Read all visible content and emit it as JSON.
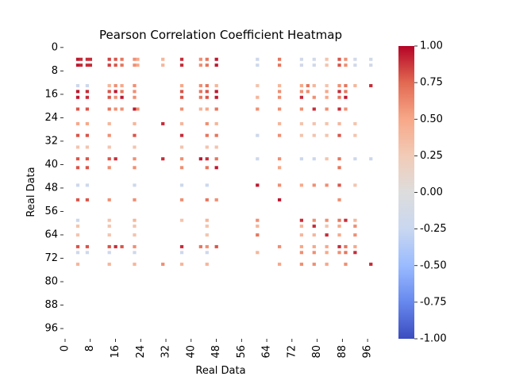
{
  "chart_data": {
    "type": "heatmap",
    "title": "Pearson Correlation Coefficient Heatmap",
    "xlabel": "Real Data",
    "ylabel": "Real Data",
    "n": 100,
    "x_ticks": [
      "0",
      "8",
      "16",
      "24",
      "32",
      "40",
      "48",
      "56",
      "64",
      "72",
      "80",
      "88",
      "96"
    ],
    "y_ticks": [
      "0",
      "8",
      "16",
      "24",
      "32",
      "40",
      "48",
      "56",
      "64",
      "72",
      "80",
      "88",
      "96"
    ],
    "colorbar": {
      "min": -1.0,
      "max": 1.0,
      "ticks": [
        "-1.00",
        "-0.75",
        "-0.50",
        "-0.25",
        "0.00",
        "0.25",
        "0.50",
        "0.75",
        "1.00"
      ],
      "colormap": "coolwarm",
      "colors": [
        "#3b4cc0",
        "#6788ee",
        "#9abbff",
        "#c9d7f0",
        "#dddddd",
        "#f2cbb7",
        "#f7a889",
        "#e26952",
        "#b40426"
      ]
    },
    "cells_note": "Sparse correlation matrix; dominant values listed below (row, col, value). Unlisted cells are blank (NaN).",
    "cells": [
      [
        4,
        4,
        0.95
      ],
      [
        4,
        5,
        0.9
      ],
      [
        4,
        7,
        0.9
      ],
      [
        4,
        8,
        0.9
      ],
      [
        4,
        14,
        0.85
      ],
      [
        4,
        16,
        0.8
      ],
      [
        4,
        18,
        0.7
      ],
      [
        4,
        22,
        0.6
      ],
      [
        4,
        23,
        0.5
      ],
      [
        4,
        31,
        0.4
      ],
      [
        4,
        37,
        0.9
      ],
      [
        4,
        43,
        0.6
      ],
      [
        4,
        45,
        0.7
      ],
      [
        4,
        48,
        0.95
      ],
      [
        4,
        61,
        -0.2
      ],
      [
        4,
        68,
        0.7
      ],
      [
        4,
        75,
        -0.15
      ],
      [
        4,
        79,
        -0.15
      ],
      [
        4,
        83,
        0.3
      ],
      [
        4,
        87,
        0.8
      ],
      [
        4,
        89,
        0.6
      ],
      [
        4,
        92,
        -0.15
      ],
      [
        4,
        97,
        -0.15
      ],
      [
        6,
        4,
        0.95
      ],
      [
        6,
        5,
        0.9
      ],
      [
        6,
        7,
        0.9
      ],
      [
        6,
        8,
        0.9
      ],
      [
        6,
        14,
        0.85
      ],
      [
        6,
        16,
        0.8
      ],
      [
        6,
        18,
        0.7
      ],
      [
        6,
        22,
        0.6
      ],
      [
        6,
        23,
        0.5
      ],
      [
        6,
        31,
        0.4
      ],
      [
        6,
        37,
        0.9
      ],
      [
        6,
        43,
        0.6
      ],
      [
        6,
        45,
        0.7
      ],
      [
        6,
        48,
        0.95
      ],
      [
        6,
        61,
        -0.2
      ],
      [
        6,
        68,
        0.7
      ],
      [
        6,
        75,
        -0.15
      ],
      [
        6,
        79,
        -0.15
      ],
      [
        6,
        83,
        0.3
      ],
      [
        6,
        87,
        0.8
      ],
      [
        6,
        89,
        0.6
      ],
      [
        6,
        92,
        -0.15
      ],
      [
        6,
        97,
        -0.15
      ],
      [
        13,
        4,
        -0.2
      ],
      [
        13,
        7,
        -0.2
      ],
      [
        13,
        14,
        0.4
      ],
      [
        13,
        16,
        0.6
      ],
      [
        13,
        18,
        0.5
      ],
      [
        13,
        22,
        0.6
      ],
      [
        13,
        37,
        0.5
      ],
      [
        13,
        43,
        0.6
      ],
      [
        13,
        45,
        0.7
      ],
      [
        13,
        48,
        0.4
      ],
      [
        13,
        61,
        0.3
      ],
      [
        13,
        68,
        0.4
      ],
      [
        13,
        75,
        0.5
      ],
      [
        13,
        77,
        0.7
      ],
      [
        13,
        79,
        0.4
      ],
      [
        13,
        83,
        0.3
      ],
      [
        13,
        87,
        0.6
      ],
      [
        13,
        89,
        0.7
      ],
      [
        13,
        92,
        0.4
      ],
      [
        13,
        97,
        0.9
      ],
      [
        15,
        4,
        0.95
      ],
      [
        15,
        7,
        0.9
      ],
      [
        15,
        14,
        0.8
      ],
      [
        15,
        16,
        0.95
      ],
      [
        15,
        18,
        0.7
      ],
      [
        15,
        22,
        0.6
      ],
      [
        15,
        37,
        0.8
      ],
      [
        15,
        43,
        0.7
      ],
      [
        15,
        45,
        0.8
      ],
      [
        15,
        48,
        0.95
      ],
      [
        15,
        68,
        0.6
      ],
      [
        15,
        75,
        0.6
      ],
      [
        15,
        77,
        0.6
      ],
      [
        15,
        83,
        0.5
      ],
      [
        15,
        87,
        0.9
      ],
      [
        15,
        89,
        0.7
      ],
      [
        17,
        4,
        0.95
      ],
      [
        17,
        7,
        0.9
      ],
      [
        17,
        14,
        0.8
      ],
      [
        17,
        16,
        0.6
      ],
      [
        17,
        18,
        0.95
      ],
      [
        17,
        22,
        0.6
      ],
      [
        17,
        37,
        0.8
      ],
      [
        17,
        43,
        0.7
      ],
      [
        17,
        45,
        0.8
      ],
      [
        17,
        48,
        0.95
      ],
      [
        17,
        61,
        0.4
      ],
      [
        17,
        68,
        0.6
      ],
      [
        17,
        75,
        0.9
      ],
      [
        17,
        79,
        0.6
      ],
      [
        17,
        83,
        0.5
      ],
      [
        17,
        87,
        0.7
      ],
      [
        17,
        89,
        0.95
      ],
      [
        21,
        4,
        0.8
      ],
      [
        21,
        7,
        0.8
      ],
      [
        21,
        14,
        0.7
      ],
      [
        21,
        16,
        0.6
      ],
      [
        21,
        18,
        0.6
      ],
      [
        21,
        22,
        0.95
      ],
      [
        21,
        23,
        0.6
      ],
      [
        21,
        37,
        0.6
      ],
      [
        21,
        43,
        0.4
      ],
      [
        21,
        45,
        0.5
      ],
      [
        21,
        48,
        0.7
      ],
      [
        21,
        61,
        0.6
      ],
      [
        21,
        68,
        0.6
      ],
      [
        21,
        75,
        0.6
      ],
      [
        21,
        79,
        0.9
      ],
      [
        21,
        83,
        0.6
      ],
      [
        21,
        87,
        0.9
      ],
      [
        21,
        89,
        0.6
      ],
      [
        26,
        4,
        0.5
      ],
      [
        26,
        7,
        0.5
      ],
      [
        26,
        14,
        0.4
      ],
      [
        26,
        22,
        0.4
      ],
      [
        26,
        31,
        0.9
      ],
      [
        26,
        37,
        0.4
      ],
      [
        26,
        45,
        0.6
      ],
      [
        26,
        48,
        0.4
      ],
      [
        26,
        68,
        0.4
      ],
      [
        26,
        75,
        0.3
      ],
      [
        26,
        79,
        0.3
      ],
      [
        26,
        83,
        0.3
      ],
      [
        26,
        87,
        0.4
      ],
      [
        26,
        92,
        0.3
      ],
      [
        30,
        4,
        0.8
      ],
      [
        30,
        7,
        0.8
      ],
      [
        30,
        14,
        0.6
      ],
      [
        30,
        22,
        0.8
      ],
      [
        30,
        37,
        0.9
      ],
      [
        30,
        45,
        0.7
      ],
      [
        30,
        48,
        0.7
      ],
      [
        30,
        61,
        -0.2
      ],
      [
        30,
        68,
        0.6
      ],
      [
        30,
        75,
        0.3
      ],
      [
        30,
        79,
        0.3
      ],
      [
        30,
        83,
        0.3
      ],
      [
        30,
        87,
        0.8
      ],
      [
        30,
        92,
        0.3
      ],
      [
        34,
        4,
        0.3
      ],
      [
        34,
        7,
        0.3
      ],
      [
        34,
        14,
        0.3
      ],
      [
        34,
        22,
        0.3
      ],
      [
        34,
        37,
        0.3
      ],
      [
        34,
        45,
        0.3
      ],
      [
        34,
        48,
        0.3
      ],
      [
        38,
        4,
        0.8
      ],
      [
        38,
        7,
        0.8
      ],
      [
        38,
        14,
        0.8
      ],
      [
        38,
        16,
        0.9
      ],
      [
        38,
        22,
        0.6
      ],
      [
        38,
        31,
        0.9
      ],
      [
        38,
        37,
        0.6
      ],
      [
        38,
        43,
        0.95
      ],
      [
        38,
        45,
        0.9
      ],
      [
        38,
        48,
        0.7
      ],
      [
        38,
        61,
        -0.2
      ],
      [
        38,
        68,
        0.6
      ],
      [
        38,
        75,
        -0.2
      ],
      [
        38,
        79,
        -0.2
      ],
      [
        38,
        83,
        0.3
      ],
      [
        38,
        87,
        0.7
      ],
      [
        38,
        92,
        -0.2
      ],
      [
        38,
        97,
        -0.2
      ],
      [
        41,
        4,
        0.8
      ],
      [
        41,
        7,
        0.8
      ],
      [
        41,
        14,
        0.6
      ],
      [
        41,
        22,
        0.6
      ],
      [
        41,
        37,
        0.6
      ],
      [
        41,
        45,
        0.7
      ],
      [
        41,
        48,
        0.95
      ],
      [
        41,
        68,
        0.5
      ],
      [
        41,
        87,
        0.7
      ],
      [
        47,
        4,
        -0.2
      ],
      [
        47,
        7,
        -0.2
      ],
      [
        47,
        22,
        -0.2
      ],
      [
        47,
        37,
        -0.2
      ],
      [
        47,
        45,
        -0.2
      ],
      [
        47,
        61,
        0.95
      ],
      [
        47,
        68,
        0.6
      ],
      [
        47,
        75,
        0.5
      ],
      [
        47,
        79,
        0.6
      ],
      [
        47,
        83,
        0.6
      ],
      [
        47,
        87,
        0.8
      ],
      [
        47,
        92,
        0.3
      ],
      [
        52,
        4,
        0.8
      ],
      [
        52,
        7,
        0.8
      ],
      [
        52,
        14,
        0.6
      ],
      [
        52,
        22,
        0.6
      ],
      [
        52,
        37,
        0.6
      ],
      [
        52,
        45,
        0.7
      ],
      [
        52,
        48,
        0.6
      ],
      [
        52,
        68,
        0.95
      ],
      [
        52,
        87,
        0.6
      ],
      [
        59,
        4,
        -0.2
      ],
      [
        59,
        14,
        0.3
      ],
      [
        59,
        22,
        0.4
      ],
      [
        59,
        37,
        0.3
      ],
      [
        59,
        45,
        0.4
      ],
      [
        59,
        61,
        0.6
      ],
      [
        59,
        75,
        0.9
      ],
      [
        59,
        79,
        0.6
      ],
      [
        59,
        83,
        0.6
      ],
      [
        59,
        87,
        0.7
      ],
      [
        59,
        89,
        0.9
      ],
      [
        59,
        92,
        0.4
      ],
      [
        61,
        4,
        0.3
      ],
      [
        61,
        14,
        0.3
      ],
      [
        61,
        22,
        0.3
      ],
      [
        61,
        45,
        0.3
      ],
      [
        61,
        61,
        0.4
      ],
      [
        61,
        75,
        0.4
      ],
      [
        61,
        79,
        0.9
      ],
      [
        61,
        83,
        0.3
      ],
      [
        61,
        87,
        0.5
      ],
      [
        61,
        92,
        0.6
      ],
      [
        64,
        4,
        0.3
      ],
      [
        64,
        14,
        0.3
      ],
      [
        64,
        22,
        0.3
      ],
      [
        64,
        45,
        0.3
      ],
      [
        64,
        61,
        0.7
      ],
      [
        64,
        75,
        0.4
      ],
      [
        64,
        79,
        0.4
      ],
      [
        64,
        83,
        0.9
      ],
      [
        64,
        87,
        0.5
      ],
      [
        64,
        92,
        0.6
      ],
      [
        68,
        4,
        0.8
      ],
      [
        68,
        7,
        0.8
      ],
      [
        68,
        14,
        0.8
      ],
      [
        68,
        16,
        0.9
      ],
      [
        68,
        18,
        0.8
      ],
      [
        68,
        22,
        0.6
      ],
      [
        68,
        37,
        0.9
      ],
      [
        68,
        43,
        0.7
      ],
      [
        68,
        45,
        0.6
      ],
      [
        68,
        48,
        0.8
      ],
      [
        68,
        68,
        0.6
      ],
      [
        68,
        75,
        0.5
      ],
      [
        68,
        79,
        0.5
      ],
      [
        68,
        83,
        0.5
      ],
      [
        68,
        87,
        0.9
      ],
      [
        68,
        89,
        0.7
      ],
      [
        68,
        92,
        0.5
      ],
      [
        70,
        4,
        -0.2
      ],
      [
        70,
        7,
        -0.2
      ],
      [
        70,
        14,
        -0.2
      ],
      [
        70,
        22,
        -0.2
      ],
      [
        70,
        37,
        -0.2
      ],
      [
        70,
        45,
        -0.2
      ],
      [
        70,
        61,
        0.4
      ],
      [
        70,
        75,
        0.6
      ],
      [
        70,
        79,
        0.6
      ],
      [
        70,
        83,
        0.5
      ],
      [
        70,
        87,
        0.6
      ],
      [
        70,
        89,
        0.7
      ],
      [
        70,
        92,
        0.9
      ],
      [
        74,
        4,
        0.4
      ],
      [
        74,
        14,
        0.4
      ],
      [
        74,
        22,
        0.4
      ],
      [
        74,
        31,
        0.6
      ],
      [
        74,
        37,
        0.4
      ],
      [
        74,
        45,
        0.4
      ],
      [
        74,
        68,
        0.5
      ],
      [
        74,
        75,
        0.6
      ],
      [
        74,
        79,
        0.6
      ],
      [
        74,
        83,
        0.5
      ],
      [
        74,
        89,
        0.6
      ],
      [
        74,
        97,
        0.9
      ]
    ]
  }
}
